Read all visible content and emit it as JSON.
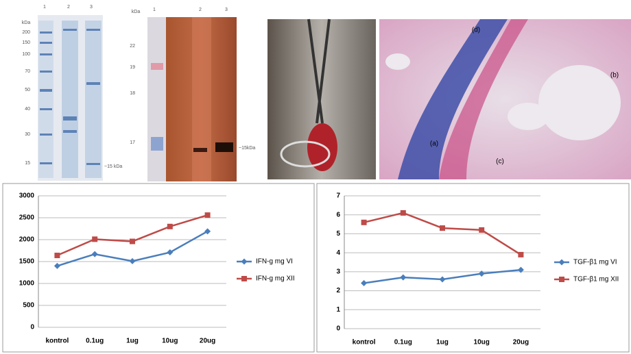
{
  "panels": {
    "gel1": {
      "unit": "kDa",
      "lanes": [
        "1",
        "2",
        "3"
      ],
      "markers": [
        "200",
        "150",
        "100",
        "70",
        "50",
        "40",
        "30",
        "15"
      ],
      "band_label": "~15 kDa"
    },
    "gel2": {
      "unit": "kDa",
      "lanes": [
        "1",
        "2",
        "3"
      ],
      "markers": [
        "22",
        "19",
        "18",
        "17"
      ],
      "band_label": "~15kDa"
    },
    "histology_labels": [
      "(d)",
      "(b)",
      "(a)",
      "(c)"
    ]
  },
  "chart_data": [
    {
      "type": "line",
      "categories": [
        "kontrol",
        "0.1ug",
        "1ug",
        "10ug",
        "20ug"
      ],
      "series": [
        {
          "name": "IFN-g mg VI",
          "color": "#4a7ebb",
          "marker": "diamond",
          "values": [
            1400,
            1670,
            1510,
            1710,
            2190
          ]
        },
        {
          "name": "IFN-g mg XII",
          "color": "#be4b48",
          "marker": "square",
          "values": [
            1640,
            2010,
            1960,
            2300,
            2560
          ]
        }
      ],
      "ylim": [
        0,
        3000
      ],
      "yticks": [
        0,
        500,
        1000,
        1500,
        2000,
        2500,
        3000
      ],
      "grid": true,
      "legend": "right"
    },
    {
      "type": "line",
      "categories": [
        "kontrol",
        "0.1ug",
        "1ug",
        "10ug",
        "20ug"
      ],
      "series": [
        {
          "name": "TGF-β1 mg VI",
          "color": "#4a7ebb",
          "marker": "diamond",
          "values": [
            2.4,
            2.7,
            2.6,
            2.9,
            3.1
          ]
        },
        {
          "name": "TGF-β1 mg XII",
          "color": "#be4b48",
          "marker": "square",
          "values": [
            5.6,
            6.1,
            5.3,
            5.2,
            3.9
          ]
        }
      ],
      "ylim": [
        0,
        7
      ],
      "yticks": [
        0,
        1,
        2,
        3,
        4,
        5,
        6,
        7
      ],
      "grid": true,
      "legend": "right"
    }
  ]
}
